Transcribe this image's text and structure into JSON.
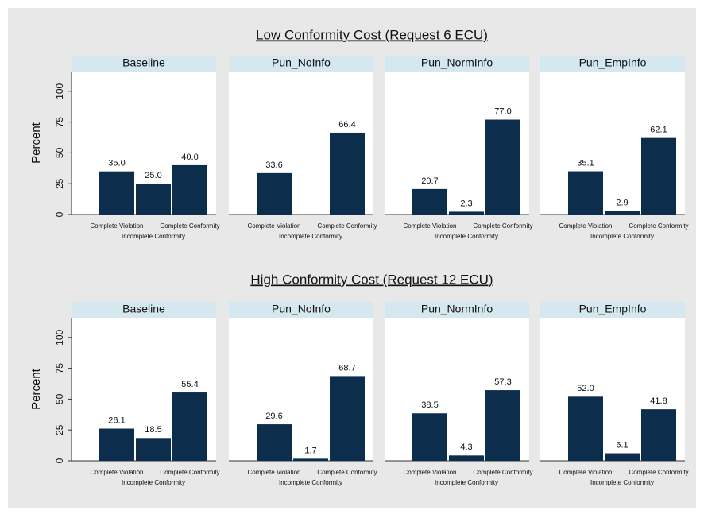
{
  "chart_data": [
    {
      "type": "bar",
      "title": "Low Conformity Cost (Request 6 ECU)",
      "ylabel": "Percent",
      "categories": [
        "Complete Violation",
        "Incomplete Conformity",
        "Complete Conformity"
      ],
      "ylim": [
        0,
        116
      ],
      "yticks": [
        0,
        25,
        50,
        75,
        100
      ],
      "color": "#0c2d4b",
      "panels": [
        {
          "title": "Baseline",
          "values": [
            35,
            25,
            40
          ],
          "value_labels": [
            "35.0",
            "25.0",
            "40.0"
          ]
        },
        {
          "title": "Pun_NoInfo",
          "values": [
            33.6,
            null,
            66.4
          ],
          "value_labels": [
            "33.6",
            null,
            "66.4"
          ]
        },
        {
          "title": "Pun_NormInfo",
          "values": [
            20.7,
            2.3,
            77
          ],
          "value_labels": [
            "20.7",
            "2.3",
            "77.0"
          ]
        },
        {
          "title": "Pun_EmpInfo",
          "values": [
            35.1,
            2.9,
            62.1
          ],
          "value_labels": [
            "35.1",
            "2.9",
            "62.1"
          ]
        }
      ]
    },
    {
      "type": "bar",
      "title": "High Conformity Cost (Request 12 ECU)",
      "ylabel": "Percent",
      "categories": [
        "Complete Violation",
        "Incomplete Conformity",
        "Complete Conformity"
      ],
      "ylim": [
        0,
        116
      ],
      "yticks": [
        0,
        25,
        50,
        75,
        100
      ],
      "color": "#0c2d4b",
      "panels": [
        {
          "title": "Baseline",
          "values": [
            26.1,
            18.5,
            55.4
          ],
          "value_labels": [
            "26.1",
            "18.5",
            "55.4"
          ]
        },
        {
          "title": "Pun_NoInfo",
          "values": [
            29.6,
            1.7,
            68.7
          ],
          "value_labels": [
            "29.6",
            "1.7",
            "68.7"
          ]
        },
        {
          "title": "Pun_NormInfo",
          "values": [
            38.5,
            4.3,
            57.3
          ],
          "value_labels": [
            "38.5",
            "4.3",
            "57.3"
          ]
        },
        {
          "title": "Pun_EmpInfo",
          "values": [
            52,
            6.1,
            41.8
          ],
          "value_labels": [
            "52.0",
            "6.1",
            "41.8"
          ]
        }
      ]
    }
  ]
}
